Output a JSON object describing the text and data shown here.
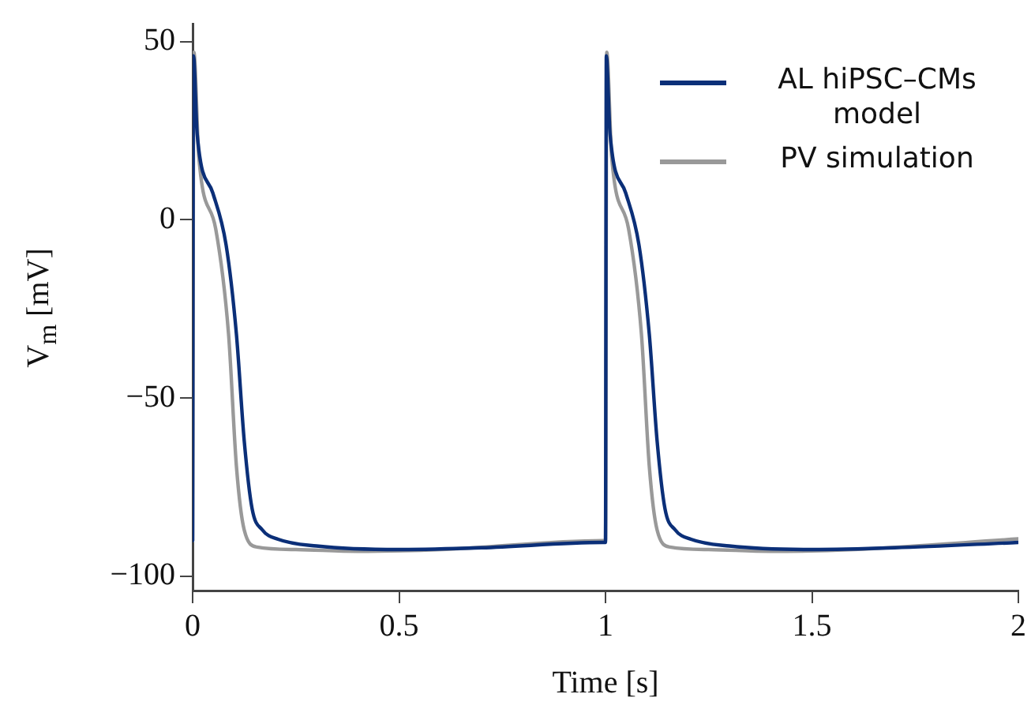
{
  "chart_data": {
    "type": "line",
    "xlabel": "Time [s]",
    "ylabel": "V$_{m}$ [mV]",
    "xlim": [
      0,
      2
    ],
    "xticks": [
      0,
      0.5,
      1,
      1.5,
      2
    ],
    "ylim": [
      -104,
      55
    ],
    "yticks": [
      -100,
      -50,
      0,
      50
    ],
    "grid": false,
    "legend": "top right",
    "line_style": "solid",
    "marker": "none",
    "series": [
      {
        "name": "AL hiPSC–CMs model",
        "color": "#0b2f78",
        "x": [
          0,
          0.002,
          0.011,
          0.049,
          0.081,
          0.106,
          0.125,
          0.144,
          0.169,
          0.207,
          0.3,
          0.5,
          0.7,
          0.998,
          1,
          1.002,
          1.011,
          1.049,
          1.081,
          1.106,
          1.125,
          1.144,
          1.169,
          1.207,
          1.3,
          1.5,
          1.7,
          2
        ],
        "values": [
          -90,
          46,
          24,
          7.5,
          -7,
          -32,
          -62,
          -81,
          -87,
          -89.6,
          -91.5,
          -92.5,
          -92,
          -90.5,
          -90.5,
          46,
          24,
          7.5,
          -7,
          -32,
          -62,
          -81,
          -87,
          -89.6,
          -91.5,
          -92.5,
          -92,
          -90.5
        ]
      },
      {
        "name": "PV simulation",
        "color": "#999999",
        "x": [
          0,
          0.003,
          0.015,
          0.056,
          0.087,
          0.106,
          0.125,
          0.156,
          0.25,
          0.4,
          0.6,
          0.998,
          1,
          1.003,
          1.015,
          1.056,
          1.087,
          1.106,
          1.125,
          1.156,
          1.25,
          1.4,
          1.6,
          2
        ],
        "values": [
          -90,
          47,
          17.6,
          -2.6,
          -32,
          -69,
          -87,
          -91.8,
          -92.5,
          -93,
          -92.5,
          -90,
          -90,
          47,
          17.6,
          -2.6,
          -32,
          -69,
          -87,
          -91.8,
          -92.5,
          -93,
          -92.5,
          -89.5
        ]
      }
    ]
  }
}
